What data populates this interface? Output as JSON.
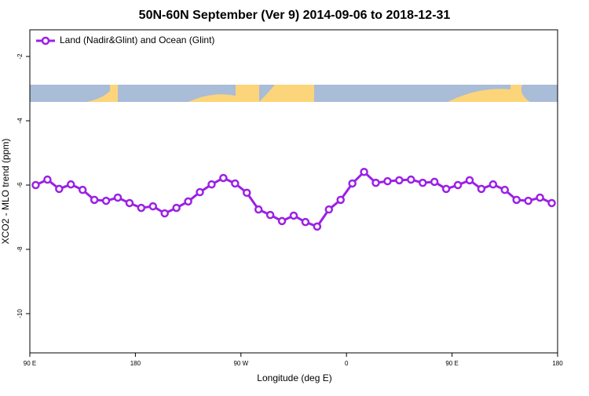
{
  "chart_data": {
    "type": "line",
    "title": "50N-60N September (Ver 9)   2014-09-06 to 2018-12-31",
    "xlabel": "Longitude (deg E)",
    "ylabel": "XCO2 - MLO trend (ppm)",
    "x": [
      95,
      105,
      115,
      125,
      135,
      145,
      155,
      165,
      175,
      185,
      195,
      205,
      215,
      225,
      235,
      245,
      255,
      265,
      275,
      285,
      295,
      305,
      315,
      325,
      335,
      345,
      355,
      365,
      375,
      385,
      395,
      405,
      415,
      425,
      435,
      445,
      455,
      465,
      475,
      485,
      495,
      505,
      515,
      525,
      535
    ],
    "series": [
      {
        "name": "Land (Nadir&Glint) and Ocean (Glint)",
        "color": "#9b20e6",
        "values": [
          -6.0,
          -5.83,
          -6.12,
          -5.98,
          -6.15,
          -6.46,
          -6.49,
          -6.39,
          -6.56,
          -6.71,
          -6.66,
          -6.88,
          -6.71,
          -6.51,
          -6.22,
          -5.98,
          -5.78,
          -5.95,
          -6.24,
          -6.76,
          -6.93,
          -7.12,
          -6.95,
          -7.15,
          -7.29,
          -6.76,
          -6.46,
          -5.95,
          -5.59,
          -5.93,
          -5.88,
          -5.85,
          -5.83,
          -5.93,
          -5.9,
          -6.12,
          -6.0,
          -5.85,
          -6.12,
          -5.98,
          -6.15,
          -6.46,
          -6.49,
          -6.39,
          -6.56
        ]
      }
    ],
    "xlim": [
      90,
      540
    ],
    "xticks": [
      {
        "value": 90,
        "label": "90 E"
      },
      {
        "value": 180,
        "label": "180"
      },
      {
        "value": 270,
        "label": "90 W"
      },
      {
        "value": 360,
        "label": "0"
      },
      {
        "value": 450,
        "label": "90 E"
      },
      {
        "value": 540,
        "label": "180"
      }
    ],
    "ylim": [
      -11.22,
      -1.17
    ],
    "yticks": [
      -2,
      -4,
      -6,
      -8,
      -10
    ],
    "legend": "top-left"
  }
}
